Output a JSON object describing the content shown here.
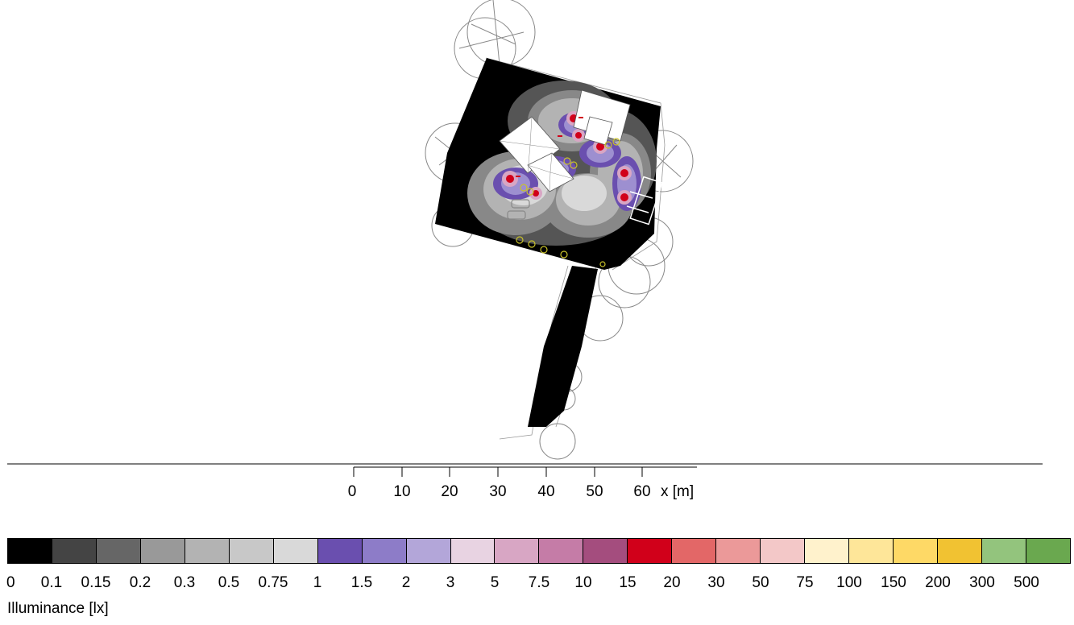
{
  "plan": {
    "scale_bar": {
      "ticks": [
        "0",
        "10",
        "20",
        "30",
        "40",
        "50",
        "60"
      ],
      "unit_label": "x [m]"
    }
  },
  "legend": {
    "title": "Illuminance [lx]",
    "bins": [
      {
        "label": "0",
        "color": "#000000"
      },
      {
        "label": "0.1",
        "color": "#444444"
      },
      {
        "label": "0.15",
        "color": "#666666"
      },
      {
        "label": "0.2",
        "color": "#999999"
      },
      {
        "label": "0.3",
        "color": "#b3b3b3"
      },
      {
        "label": "0.5",
        "color": "#c8c8c8"
      },
      {
        "label": "0.75",
        "color": "#d9d9d9"
      },
      {
        "label": "1",
        "color": "#6a4faf"
      },
      {
        "label": "1.5",
        "color": "#8d7cc8"
      },
      {
        "label": "2",
        "color": "#b3a6d9"
      },
      {
        "label": "3",
        "color": "#e8d3e2"
      },
      {
        "label": "5",
        "color": "#d8a6c4"
      },
      {
        "label": "7.5",
        "color": "#c57ca7"
      },
      {
        "label": "10",
        "color": "#a44d7e"
      },
      {
        "label": "15",
        "color": "#d1001a"
      },
      {
        "label": "20",
        "color": "#e36767"
      },
      {
        "label": "30",
        "color": "#eb9999"
      },
      {
        "label": "50",
        "color": "#f3c8c8"
      },
      {
        "label": "75",
        "color": "#fff2cc"
      },
      {
        "label": "100",
        "color": "#fee699"
      },
      {
        "label": "150",
        "color": "#fed966"
      },
      {
        "label": "200",
        "color": "#f1c232"
      },
      {
        "label": "300",
        "color": "#93c47d"
      },
      {
        "label": "500",
        "color": "#6aa84f"
      }
    ]
  },
  "contour_colors": {
    "dark": "#000000",
    "gray1": "#555555",
    "gray2": "#888888",
    "gray3": "#b3b3b3",
    "gray4": "#d9d9d9",
    "purple1": "#6a4faf",
    "purple2": "#9d8fd0",
    "pink": "#d8a6c4",
    "red": "#d1001a",
    "yellow": "#c9c22a",
    "line": "#888888"
  }
}
